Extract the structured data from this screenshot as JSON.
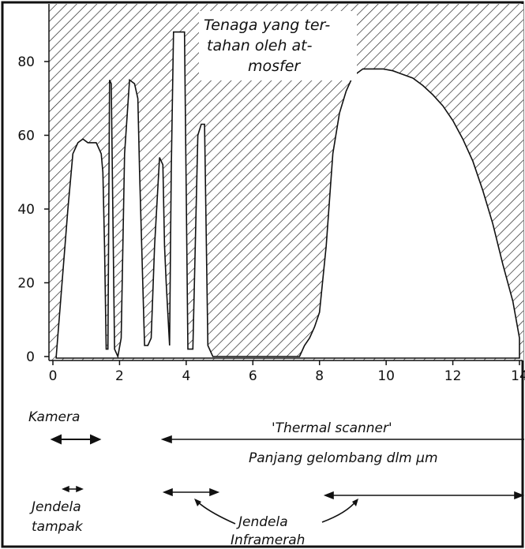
{
  "chart_data": {
    "type": "area",
    "xlabel": "Panjang  gelombang dlm μm",
    "x_ticks": [
      0,
      2,
      4,
      6,
      8,
      10,
      12,
      14
    ],
    "y_ticks": [
      0,
      20,
      40,
      60,
      80
    ],
    "xlim": [
      0,
      14
    ],
    "ylim": [
      0,
      90
    ],
    "grid": false,
    "hatched_region_label": "Tenaga yang ter-tahan oleh at-mosfer",
    "series": [
      {
        "x": [
          0.1,
          0.45,
          0.6,
          0.75,
          0.9,
          1.05,
          1.15,
          1.3,
          1.45,
          1.5,
          1.55,
          1.6,
          1.65,
          1.7,
          1.75,
          1.85,
          1.95,
          2.05,
          2.15,
          2.3,
          2.45,
          2.55,
          2.6,
          2.75,
          2.85,
          2.95,
          3.05,
          3.2,
          3.3,
          3.35,
          3.4,
          3.5,
          3.55,
          3.62,
          3.75,
          3.85,
          3.95,
          4.05,
          4.2,
          4.35,
          4.45,
          4.55,
          4.65,
          4.8,
          4.9,
          5.0,
          5.1,
          5.2,
          5.35,
          5.6,
          6.0,
          6.5,
          7.0,
          7.4,
          7.55,
          7.7,
          7.85,
          8.0,
          8.2,
          8.4,
          8.6,
          8.8,
          9.0,
          9.3,
          9.6,
          9.9,
          10.2,
          10.5,
          10.8,
          11.1,
          11.4,
          11.7,
          12.0,
          12.3,
          12.6,
          12.9,
          13.2,
          13.5,
          13.8,
          14.0
        ],
        "y": [
          0,
          40,
          55,
          58,
          59,
          58,
          58,
          58,
          55,
          50,
          30,
          2,
          2,
          75,
          74,
          2,
          0,
          5,
          55,
          75,
          74,
          70,
          50,
          3,
          3,
          5,
          30,
          54,
          52,
          30,
          20,
          3,
          50,
          88,
          88,
          88,
          88,
          2,
          2,
          60,
          63,
          63,
          3,
          0,
          0,
          0,
          0,
          0,
          0,
          0,
          0,
          0,
          0,
          0,
          3,
          5,
          8,
          12,
          30,
          55,
          66,
          72,
          76,
          78,
          78,
          78,
          77.5,
          76.5,
          75.5,
          73.5,
          71,
          68,
          64,
          59,
          53,
          45,
          36,
          25,
          15,
          5
        ]
      }
    ],
    "annotations": [
      "'Thermal scanner'",
      "Kamera",
      "Jendela tampak",
      "Jendela Inframerah"
    ]
  },
  "colors": {
    "ink": "#111111",
    "paper": "#ffffff"
  }
}
